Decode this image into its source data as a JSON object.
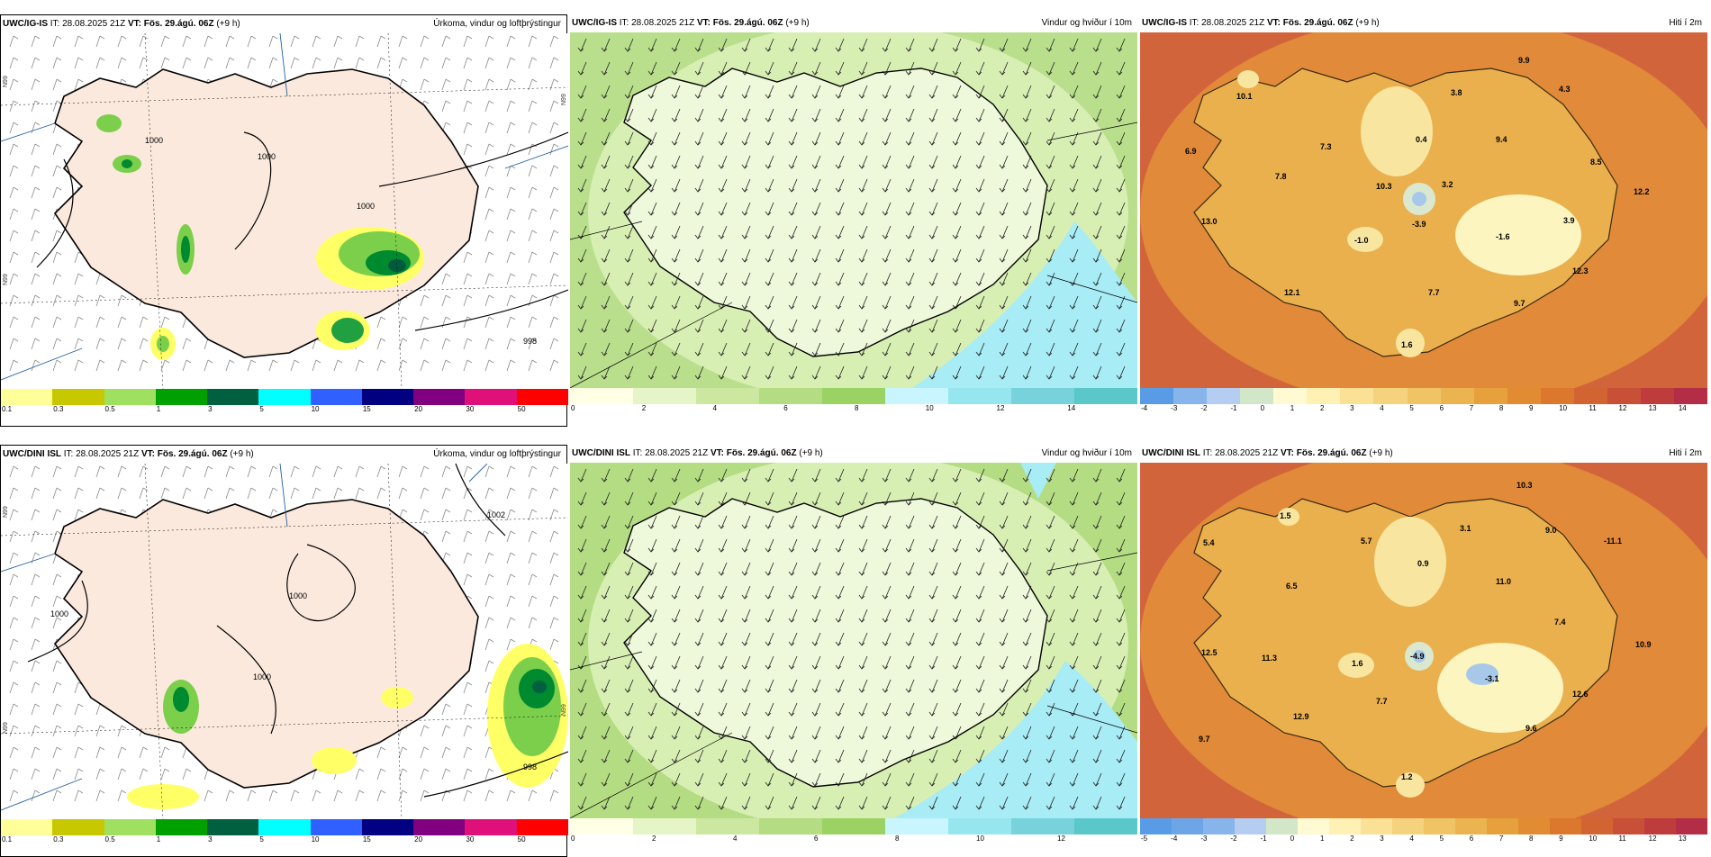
{
  "colors": {
    "precip": [
      "#ffff99",
      "#c8c800",
      "#a0e060",
      "#00a000",
      "#006040",
      "#00ffff",
      "#3060ff",
      "#000080",
      "#800080",
      "#e0107a",
      "#ff0000"
    ],
    "wind": [
      "#ffffe6",
      "#e6f5c8",
      "#cce8a0",
      "#b4dc82",
      "#9bd264",
      "#c8f5ff",
      "#96e6f0",
      "#78d2dc",
      "#5ac8c8"
    ],
    "temp_top": [
      "#5a9be6",
      "#87b4eb",
      "#b4cdf0",
      "#d2e6c8",
      "#fffad2",
      "#fff0b4",
      "#fae196",
      "#f5d27d",
      "#f0c364",
      "#ebb450",
      "#e6a03c",
      "#e18c32",
      "#dc782d",
      "#d26432",
      "#c85037",
      "#be3c3c",
      "#b42d46"
    ],
    "temp_bot": [
      "#5a9be6",
      "#6ea5e6",
      "#87b4eb",
      "#b4cdf0",
      "#d2e6c8",
      "#fffad2",
      "#fff0b4",
      "#fae196",
      "#f5d27d",
      "#f0c364",
      "#ebb450",
      "#e6a03c",
      "#e18c32",
      "#dc782d",
      "#d26432",
      "#c85037",
      "#be3c3c",
      "#b42d46"
    ]
  },
  "panels": [
    {
      "model": "UWC/IG-IS",
      "it_label": "IT:",
      "it_value": "28.08.2025 21Z",
      "vt_label": "VT:",
      "vt_value": "Fös. 29.ágú. 06Z",
      "offset": "(+9 h)",
      "title": "Úrkoma, vindur og loftþrýstingur",
      "ticks": [
        "0.1",
        "0.3",
        "0.5",
        "1",
        "3",
        "5",
        "10",
        "15",
        "20",
        "30",
        "50"
      ],
      "isobars": [
        "1000",
        "1000",
        "1000",
        "998"
      ],
      "lat_labels": [
        "N99",
        "N99",
        "N99"
      ]
    },
    {
      "model": "UWC/IG-IS",
      "it_label": "IT:",
      "it_value": "28.08.2025 21Z",
      "vt_label": "VT:",
      "vt_value": "Fös. 29.ágú. 06Z",
      "offset": "(+9 h)",
      "title": "Vindur og hviður í 10m",
      "ticks": [
        "0",
        "",
        "2",
        "",
        "4",
        "",
        "6",
        "",
        "8",
        "",
        "10",
        "",
        "12",
        "",
        "14",
        ""
      ]
    },
    {
      "model": "UWC/IG-IS",
      "it_label": "IT:",
      "it_value": "28.08.2025 21Z",
      "vt_label": "VT:",
      "vt_value": "Fös. 29.ágú. 06Z",
      "offset": "(+9 h)",
      "title": "Hiti í 2m",
      "ticks": [
        "-4",
        "-3",
        "-2",
        "-1",
        "0",
        "1",
        "2",
        "3",
        "4",
        "5",
        "6",
        "7",
        "8",
        "9",
        "10",
        "11",
        "12",
        "13",
        "14"
      ],
      "temps": [
        "9.9",
        "4.3",
        "10.1",
        "3.8",
        "9.4",
        "6.9",
        "0.4",
        "8.5",
        "7.3",
        "7.8",
        "10.3",
        "3.2",
        "12.2",
        "13.0",
        "-3.9",
        "3.9",
        "-1.0",
        "-1.6",
        "12.3",
        "12.1",
        "7.7",
        "9.7",
        "1.6"
      ]
    },
    {
      "model": "UWC/DINI ISL",
      "it_label": "IT:",
      "it_value": "28.08.2025 21Z",
      "vt_label": "VT:",
      "vt_value": "Fös. 29.ágú. 06Z",
      "offset": "(+9 h)",
      "title": "Úrkoma, vindur og loftþrýstingur",
      "ticks": [
        "0.1",
        "0.3",
        "0.5",
        "1",
        "3",
        "5",
        "10",
        "15",
        "20",
        "30",
        "50"
      ],
      "isobars": [
        "1000",
        "1000",
        "1000",
        "998",
        "1002"
      ],
      "lat_labels": [
        "N99",
        "N99",
        "N99"
      ]
    },
    {
      "model": "UWC/DINI ISL",
      "it_label": "IT:",
      "it_value": "28.08.2025 21Z",
      "vt_label": "VT:",
      "vt_value": "Fös. 29.ágú. 06Z",
      "offset": "(+9 h)",
      "title": "Vindur og hviður í 10m",
      "ticks": [
        "0",
        "",
        "2",
        "",
        "4",
        "",
        "6",
        "",
        "8",
        "",
        "10",
        "",
        "12",
        ""
      ]
    },
    {
      "model": "UWC/DINI ISL",
      "it_label": "IT:",
      "it_value": "28.08.2025 21Z",
      "vt_label": "VT:",
      "vt_value": "Fös. 29.ágú. 06Z",
      "offset": "(+9 h)",
      "title": "Hiti í 2m",
      "ticks": [
        "-5",
        "-4",
        "-3",
        "-2",
        "-1",
        "0",
        "1",
        "2",
        "3",
        "4",
        "5",
        "6",
        "7",
        "8",
        "9",
        "10",
        "11",
        "12",
        "13"
      ],
      "temps": [
        "10.3",
        "1.5",
        "5.4",
        "5.7",
        "3.1",
        "9.0",
        "-11.1",
        "0.9",
        "6.5",
        "11.0",
        "7.4",
        "12.5",
        "11.3",
        "1.6",
        "-4.9",
        "10.9",
        "-3.1",
        "12.6",
        "7.7",
        "12.9",
        "9.6",
        "9.7",
        "1.2"
      ]
    }
  ]
}
